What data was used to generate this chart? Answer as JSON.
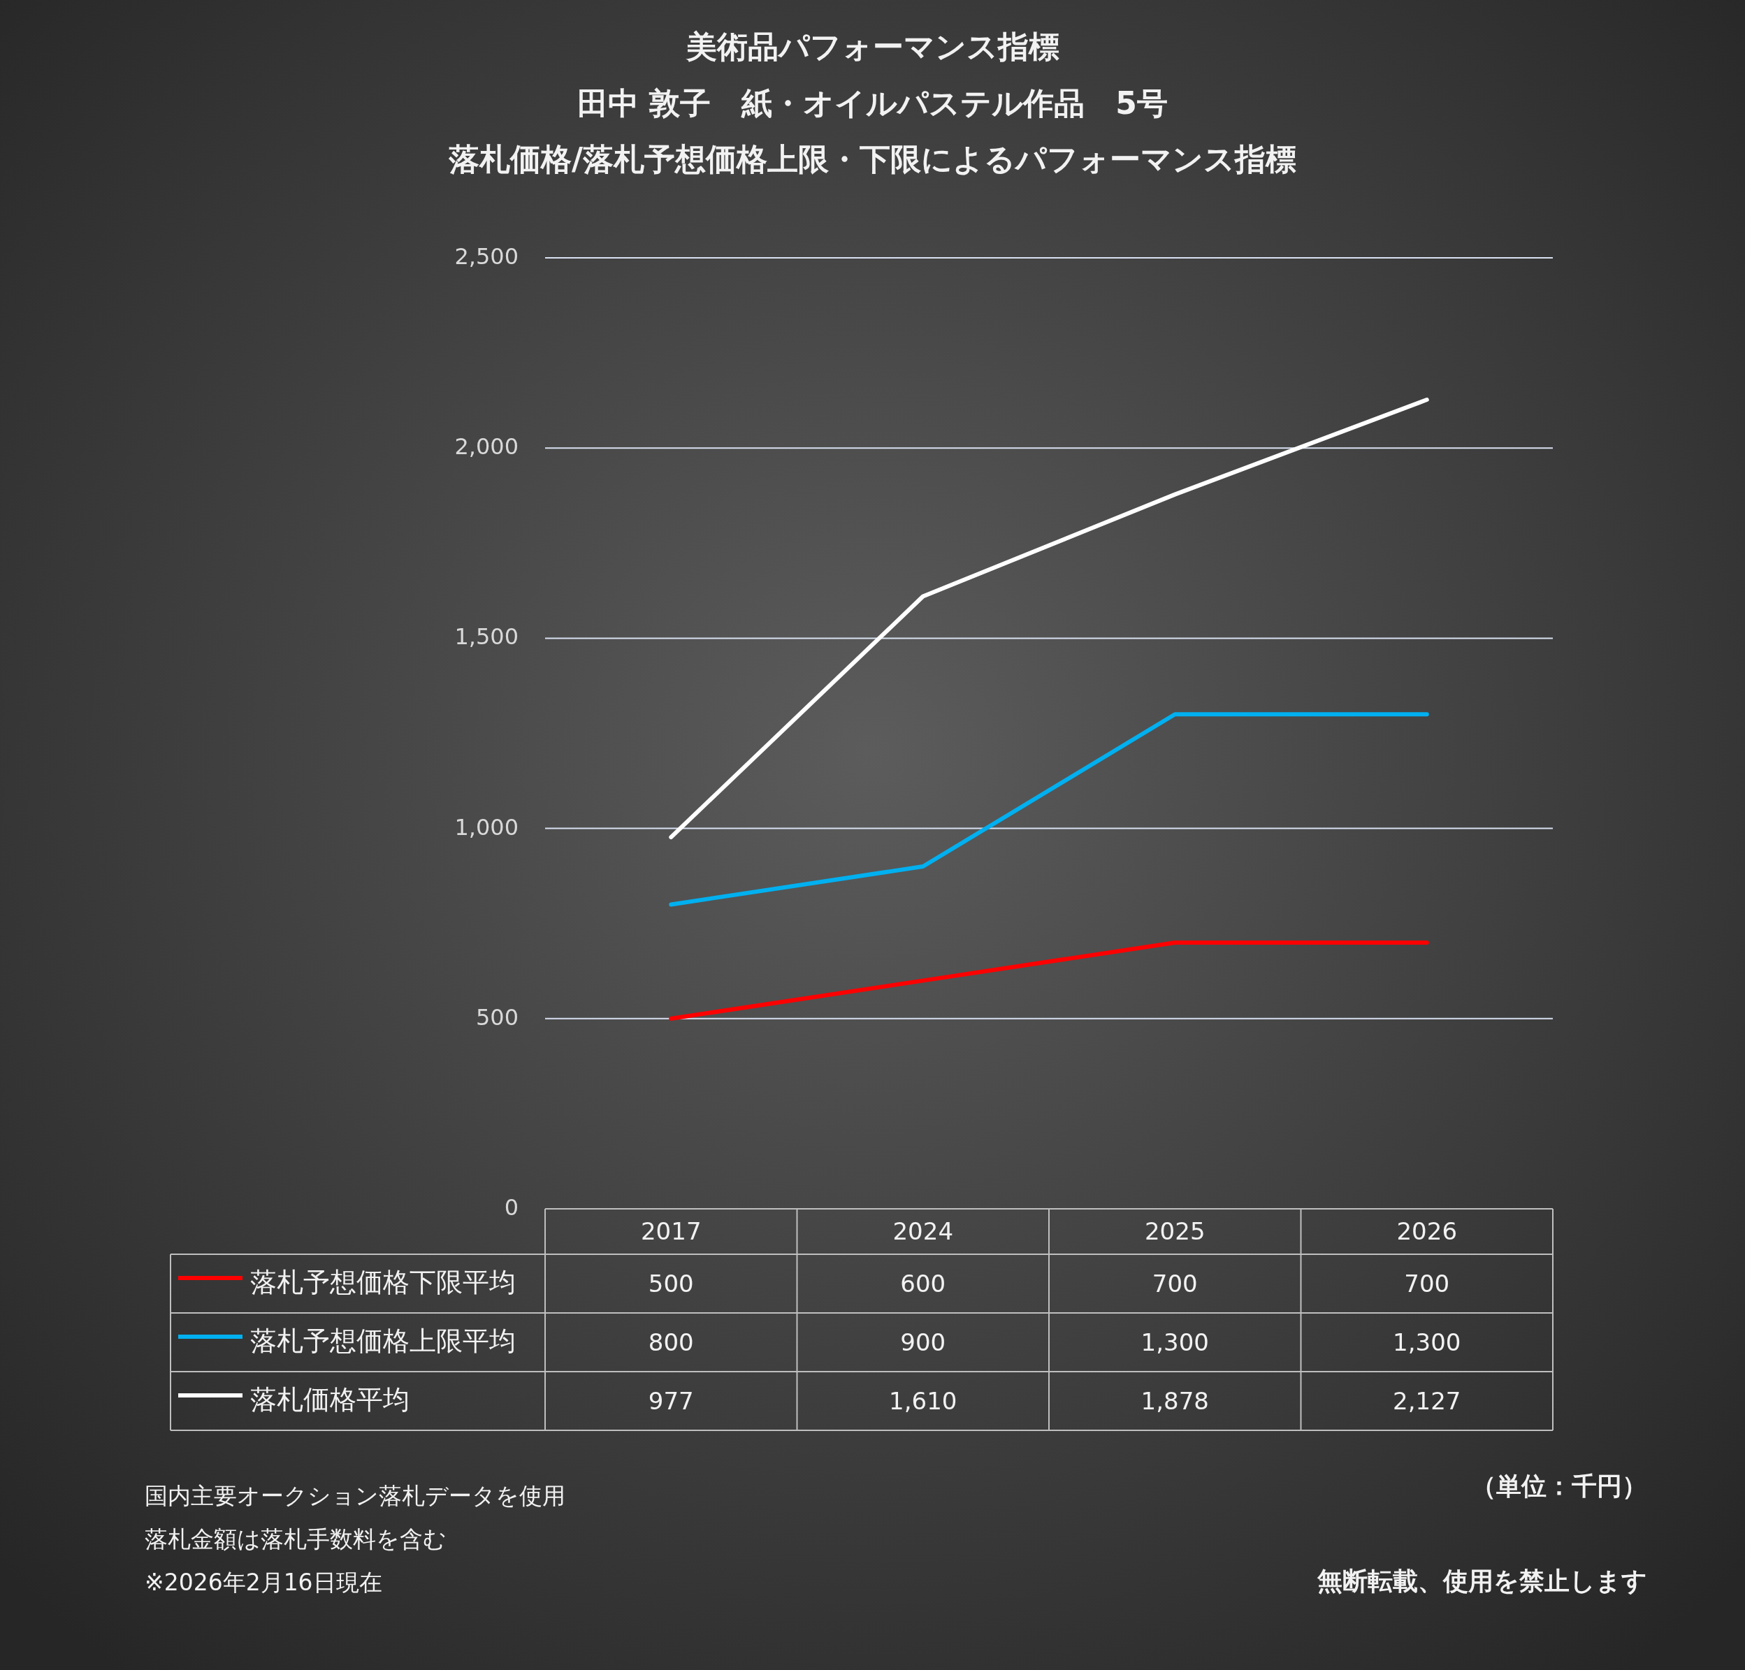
{
  "chart_data": {
    "type": "line",
    "title": "美術品パフォーマンス指標",
    "subtitle": "田中 敦子　紙・オイルパステル作品　5号",
    "categories": [
      "2017",
      "2024",
      "2025",
      "2026"
    ],
    "series": [
      {
        "name": "落札予想価格下限平均",
        "color": "#ff0000",
        "values": [
          500,
          600,
          700,
          700
        ],
        "value_labels": [
          "500",
          "600",
          "700",
          "700"
        ]
      },
      {
        "name": "落札予想価格上限平均",
        "color": "#00b0f0",
        "values": [
          800,
          900,
          1300,
          1300
        ],
        "value_labels": [
          "800",
          "900",
          "1,300",
          "1,300"
        ]
      },
      {
        "name": "落札価格平均",
        "color": "#ffffff",
        "values": [
          977,
          1610,
          1878,
          2127
        ],
        "value_labels": [
          "977",
          "1,610",
          "1,878",
          "2,127"
        ]
      }
    ],
    "ylim": [
      0,
      2500
    ],
    "yticks": [
      0,
      {
        "value": 500,
        "label": "500"
      },
      {
        "value": 1000,
        "label": "1,000"
      },
      {
        "value": 1500,
        "label": "1,500"
      },
      {
        "value": 2000,
        "label": "2,000"
      },
      {
        "value": 2500,
        "label": "2,500"
      }
    ],
    "grid": "y",
    "legend": "bottom",
    "marker": "none",
    "line_style": "solid",
    "annotations": [
      "落札価格/落札予想価格上限・下限によるパフォーマンス指標",
      "国内主要オークション落札データを使用",
      "落札金額は落札手数料を含む",
      "※2026年2月16日現在",
      "（単位：千円）",
      "無断転載、使用を禁止します"
    ]
  }
}
